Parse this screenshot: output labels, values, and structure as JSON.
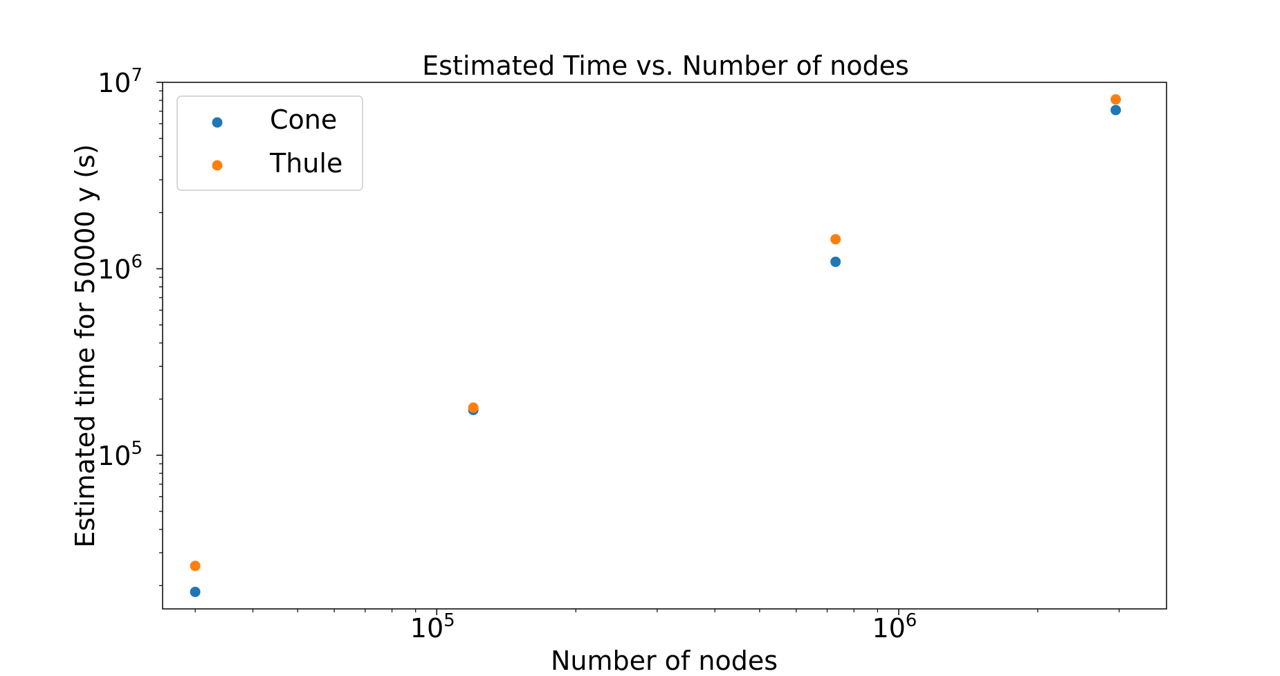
{
  "chart_data": {
    "type": "scatter",
    "title": "Estimated Time vs. Number of nodes",
    "xlabel": "Number of nodes",
    "ylabel": "Estimated time for 50000 y (s)",
    "xscale": "log",
    "yscale": "log",
    "xlim": [
      25500,
      3800000
    ],
    "ylim": [
      15000,
      10000000
    ],
    "x_ticks": [
      {
        "value": 100000,
        "base": "10",
        "exp": "5"
      },
      {
        "value": 1000000,
        "base": "10",
        "exp": "6"
      }
    ],
    "y_ticks": [
      {
        "value": 100000,
        "base": "10",
        "exp": "5"
      },
      {
        "value": 1000000,
        "base": "10",
        "exp": "6"
      },
      {
        "value": 10000000,
        "base": "10",
        "exp": "7"
      }
    ],
    "grid": false,
    "legend_position": "top-left",
    "series": [
      {
        "name": "Cone",
        "color": "#1f77b4",
        "points": [
          {
            "x": 30000,
            "y": 18500
          },
          {
            "x": 120000,
            "y": 175000
          },
          {
            "x": 730000,
            "y": 1090000
          },
          {
            "x": 2950000,
            "y": 7100000
          }
        ]
      },
      {
        "name": "Thule",
        "color": "#ff7f0e",
        "points": [
          {
            "x": 30000,
            "y": 25500
          },
          {
            "x": 120000,
            "y": 180000
          },
          {
            "x": 730000,
            "y": 1440000
          },
          {
            "x": 2950000,
            "y": 8100000
          }
        ]
      }
    ]
  }
}
